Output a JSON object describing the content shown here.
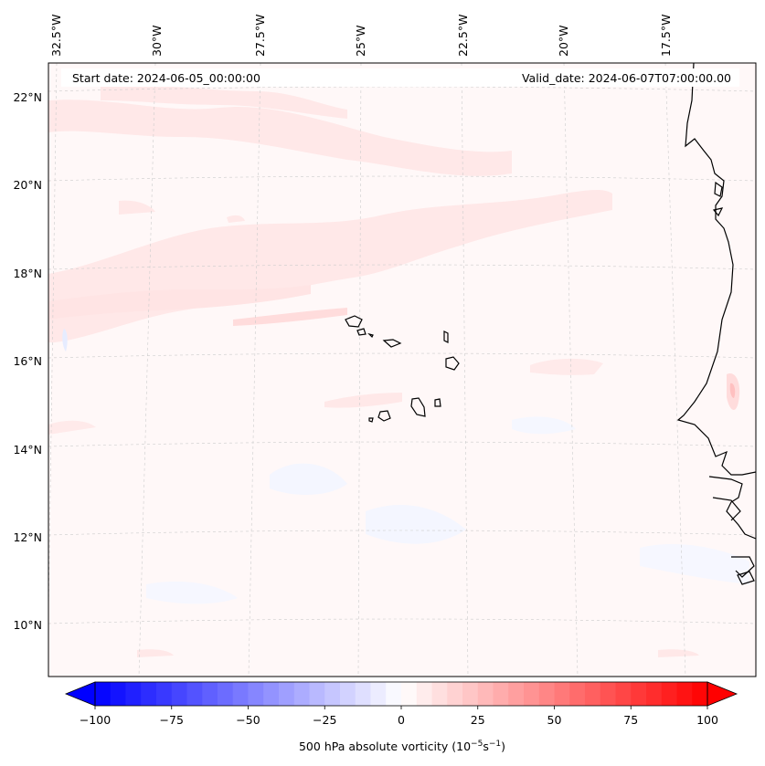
{
  "header": {
    "start_date": "Start date: 2024-06-05_00:00:00",
    "valid_date": "Valid_date: 2024-06-07T07:00:00.00"
  },
  "map": {
    "longitude_labels": [
      "32.5°W",
      "30°W",
      "27.5°W",
      "25°W",
      "22.5°W",
      "20°W",
      "17.5°W"
    ],
    "latitude_labels": [
      "22°N",
      "20°N",
      "18°N",
      "16°N",
      "14°N",
      "12°N",
      "10°N"
    ],
    "field": "500 hPa absolute vorticity",
    "colormap": "bwr",
    "colors": {
      "negative_max": "#0000ff",
      "zero": "#ffffff",
      "positive_max": "#ff0000",
      "coastline": "#000000",
      "gridline": "#cccccc"
    }
  },
  "colorbar": {
    "label_text": "500 hPa absolute vorticity (10",
    "label_exp1": "−5",
    "label_mid": "s",
    "label_exp2": "−1",
    "label_close": ")",
    "min": -100,
    "max": 100,
    "tick_labels": [
      "−100",
      "−75",
      "−50",
      "−25",
      "0",
      "25",
      "50",
      "75",
      "100"
    ],
    "tick_values": [
      -100,
      -75,
      -50,
      -25,
      0,
      25,
      50,
      75,
      100
    ],
    "levels": 41
  }
}
